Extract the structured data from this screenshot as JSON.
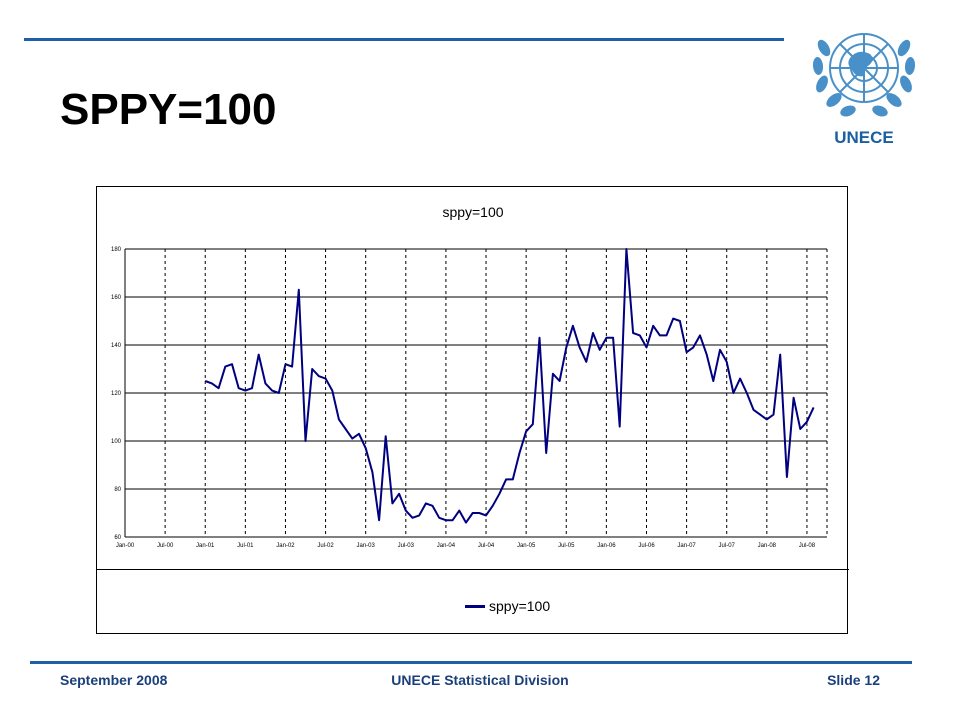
{
  "slide": {
    "title": "SPPY=100",
    "logo_text": "UNECE",
    "footer_left": "September 2008",
    "footer_center": "UNECE Statistical Division",
    "footer_right": "Slide 12"
  },
  "colors": {
    "accent": "#1f5fa8",
    "series": "#000080",
    "footer_text": "#1a3f7a"
  },
  "icons": {
    "logo": "un-emblem-icon"
  },
  "chart_data": {
    "type": "line",
    "title": "sppy=100",
    "xlabel": "",
    "ylabel": "",
    "ylim": [
      60,
      180
    ],
    "yticks": [
      60,
      80,
      100,
      120,
      140,
      160,
      180
    ],
    "xlim_months": [
      "Jan-00",
      "Oct-08"
    ],
    "xtick_labels": [
      "Jan-00",
      "Jul-00",
      "Jan-01",
      "Jul-01",
      "Jan-02",
      "Jul-02",
      "Jan-03",
      "Jul-03",
      "Jan-04",
      "Jul-04",
      "Jan-05",
      "Jul-05",
      "Jan-06",
      "Jul-06",
      "Jan-07",
      "Jul-07",
      "Jan-08",
      "Jul-08"
    ],
    "grid": {
      "horizontal": "solid",
      "vertical": "dashed"
    },
    "legend": {
      "position": "bottom",
      "entries": [
        "sppy=100"
      ]
    },
    "series": [
      {
        "name": "sppy=100",
        "color": "#000080",
        "start": "Jan-01",
        "values": [
          125,
          124,
          122,
          131,
          132,
          122,
          121,
          122,
          136,
          124,
          121,
          120,
          132,
          131,
          163,
          100,
          130,
          127,
          126,
          121,
          109,
          105,
          101,
          103,
          97,
          87,
          67,
          102,
          74,
          78,
          71,
          68,
          69,
          74,
          73,
          68,
          67,
          67,
          71,
          66,
          70,
          70,
          69,
          73,
          78,
          84,
          84,
          95,
          104,
          107,
          143,
          95,
          128,
          125,
          139,
          148,
          139,
          133,
          145,
          138,
          143,
          143,
          106,
          180,
          145,
          144,
          139,
          148,
          144,
          144,
          151,
          150,
          137,
          139,
          144,
          136,
          125,
          138,
          133,
          120,
          126,
          120,
          113,
          111,
          109,
          111,
          136,
          85,
          118,
          105,
          108,
          114
        ]
      }
    ]
  }
}
